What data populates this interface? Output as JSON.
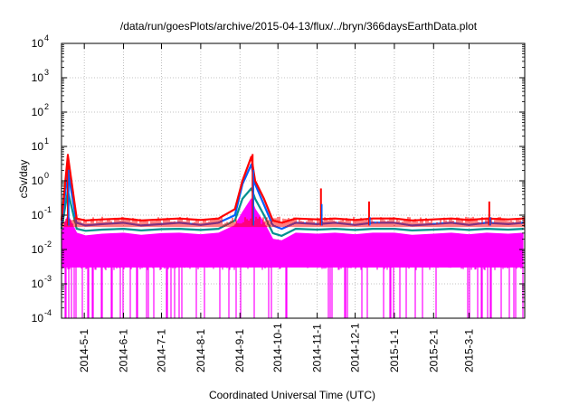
{
  "chart_data": {
    "type": "line",
    "title": "/data/run/goesPlots/archive/2015-04-13/flux/../bryn/366daysEarthData.plot",
    "xlabel": "Coordinated Universal Time (UTC)",
    "ylabel": "cSv/day",
    "yscale": "log",
    "ylim": [
      0.0001,
      10000
    ],
    "xlim": [
      "2014-04-13",
      "2015-04-14"
    ],
    "grid": true,
    "legend": "none",
    "x_ticks": [
      "2014-5-1",
      "2014-6-1",
      "2014-7-1",
      "2014-8-1",
      "2014-9-1",
      "2014-10-1",
      "2014-11-1",
      "2014-12-1",
      "2015-1-1",
      "2015-2-1",
      "2015-3-1"
    ],
    "y_ticks": [
      {
        "value": 0.0001,
        "base": "10",
        "exp": "-4"
      },
      {
        "value": 0.001,
        "base": "10",
        "exp": "-3"
      },
      {
        "value": 0.01,
        "base": "10",
        "exp": "-2"
      },
      {
        "value": 0.1,
        "base": "10",
        "exp": "-1"
      },
      {
        "value": 1,
        "base": "10",
        "exp": "0"
      },
      {
        "value": 10,
        "base": "10",
        "exp": "1"
      },
      {
        "value": 100,
        "base": "10",
        "exp": "2"
      },
      {
        "value": 1000,
        "base": "10",
        "exp": "3"
      },
      {
        "value": 10000,
        "base": "10",
        "exp": "4"
      }
    ],
    "series": [
      {
        "color": "#ff00ff",
        "x": [
          "2014-04-13",
          "2014-04-18",
          "2014-04-25",
          "2014-05-02",
          "2014-05-15",
          "2014-06-01",
          "2014-06-15",
          "2014-07-01",
          "2014-07-15",
          "2014-08-01",
          "2014-08-15",
          "2014-08-28",
          "2014-09-03",
          "2014-09-10",
          "2014-09-13",
          "2014-09-20",
          "2014-09-27",
          "2014-10-04",
          "2014-10-15",
          "2014-11-01",
          "2014-11-15",
          "2014-12-01",
          "2014-12-15",
          "2015-01-01",
          "2015-01-15",
          "2015-02-01",
          "2015-02-15",
          "2015-03-01",
          "2015-03-15",
          "2015-04-01",
          "2015-04-13"
        ],
        "values": [
          0.03,
          0.1,
          0.03,
          0.025,
          0.028,
          0.03,
          0.026,
          0.029,
          0.03,
          0.027,
          0.03,
          0.05,
          0.12,
          0.3,
          0.15,
          0.06,
          0.02,
          0.018,
          0.03,
          0.028,
          0.03,
          0.027,
          0.03,
          0.03,
          0.026,
          0.028,
          0.03,
          0.027,
          0.03,
          0.028,
          0.03
        ]
      },
      {
        "color": "#009090",
        "x": [
          "2014-04-13",
          "2014-04-18",
          "2014-04-25",
          "2014-05-02",
          "2014-05-15",
          "2014-06-01",
          "2014-06-15",
          "2014-07-01",
          "2014-07-15",
          "2014-08-01",
          "2014-08-15",
          "2014-08-28",
          "2014-09-03",
          "2014-09-10",
          "2014-09-13",
          "2014-09-20",
          "2014-09-27",
          "2014-10-04",
          "2014-10-15",
          "2014-11-01",
          "2014-11-15",
          "2014-12-01",
          "2014-12-15",
          "2015-01-01",
          "2015-01-15",
          "2015-02-01",
          "2015-02-15",
          "2015-03-01",
          "2015-03-15",
          "2015-04-01",
          "2015-04-13"
        ],
        "values": [
          0.04,
          0.5,
          0.04,
          0.035,
          0.038,
          0.04,
          0.036,
          0.039,
          0.04,
          0.037,
          0.04,
          0.07,
          0.3,
          0.6,
          0.3,
          0.1,
          0.03,
          0.025,
          0.04,
          0.038,
          0.04,
          0.037,
          0.04,
          0.04,
          0.036,
          0.038,
          0.04,
          0.037,
          0.04,
          0.038,
          0.04
        ]
      },
      {
        "color": "#0060ff",
        "x": [
          "2014-04-13",
          "2014-04-18",
          "2014-04-25",
          "2014-05-02",
          "2014-05-15",
          "2014-06-01",
          "2014-06-15",
          "2014-07-01",
          "2014-07-15",
          "2014-08-01",
          "2014-08-15",
          "2014-08-28",
          "2014-09-03",
          "2014-09-10",
          "2014-09-13",
          "2014-09-20",
          "2014-09-27",
          "2014-10-04",
          "2014-10-15",
          "2014-11-01",
          "2014-11-15",
          "2014-12-01",
          "2014-12-15",
          "2015-01-01",
          "2015-01-15",
          "2015-02-01",
          "2015-02-15",
          "2015-03-01",
          "2015-03-15",
          "2015-04-01",
          "2015-04-13"
        ],
        "values": [
          0.05,
          2.0,
          0.06,
          0.05,
          0.055,
          0.06,
          0.05,
          0.055,
          0.06,
          0.052,
          0.06,
          0.1,
          0.8,
          3.0,
          0.8,
          0.2,
          0.05,
          0.04,
          0.06,
          0.055,
          0.06,
          0.052,
          0.06,
          0.06,
          0.05,
          0.055,
          0.06,
          0.052,
          0.06,
          0.055,
          0.06
        ]
      },
      {
        "color": "#ff0000",
        "x": [
          "2014-04-13",
          "2014-04-18",
          "2014-04-25",
          "2014-05-02",
          "2014-05-15",
          "2014-06-01",
          "2014-06-15",
          "2014-07-01",
          "2014-07-15",
          "2014-08-01",
          "2014-08-15",
          "2014-08-28",
          "2014-09-03",
          "2014-09-10",
          "2014-09-13",
          "2014-09-20",
          "2014-09-27",
          "2014-10-04",
          "2014-10-15",
          "2014-11-01",
          "2014-11-15",
          "2014-12-01",
          "2014-12-15",
          "2015-01-01",
          "2015-01-15",
          "2015-02-01",
          "2015-02-15",
          "2015-03-01",
          "2015-03-15",
          "2015-04-01",
          "2015-04-13"
        ],
        "values": [
          0.07,
          5.5,
          0.08,
          0.07,
          0.075,
          0.08,
          0.07,
          0.075,
          0.08,
          0.072,
          0.08,
          0.15,
          1.0,
          5.0,
          1.0,
          0.3,
          0.07,
          0.06,
          0.08,
          0.075,
          0.08,
          0.072,
          0.08,
          0.08,
          0.07,
          0.075,
          0.08,
          0.072,
          0.08,
          0.075,
          0.08
        ]
      }
    ],
    "spikes": [
      {
        "x": "2014-04-18",
        "value": 6
      },
      {
        "x": "2014-09-11",
        "value": 6
      },
      {
        "x": "2014-11-04",
        "value": 0.6
      },
      {
        "x": "2014-12-12",
        "value": 0.25
      },
      {
        "x": "2015-03-17",
        "value": 0.25
      }
    ]
  }
}
